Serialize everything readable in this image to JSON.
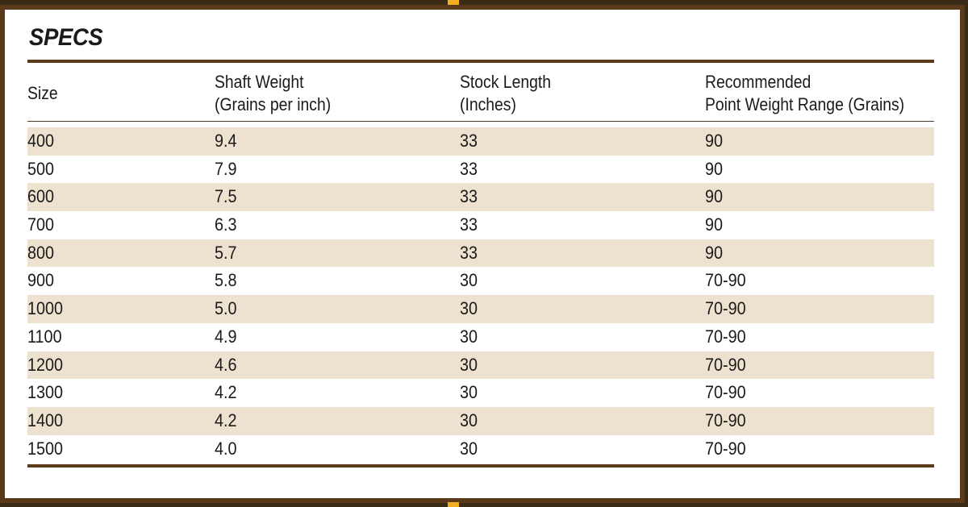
{
  "title": "SPECS",
  "headers": {
    "size": "Size",
    "shaft_weight_1": "Shaft Weight",
    "shaft_weight_2": "(Grains per inch)",
    "stock_length_1": "Stock Length",
    "stock_length_2": "(Inches)",
    "point_weight_1": "Recommended",
    "point_weight_2": "Point Weight Range (Grains)"
  },
  "rows": [
    {
      "size": "400",
      "shaft_weight": "9.4",
      "stock_length": "33",
      "point_weight": "90"
    },
    {
      "size": "500",
      "shaft_weight": "7.9",
      "stock_length": "33",
      "point_weight": "90"
    },
    {
      "size": "600",
      "shaft_weight": "7.5",
      "stock_length": "33",
      "point_weight": "90"
    },
    {
      "size": "700",
      "shaft_weight": "6.3",
      "stock_length": "33",
      "point_weight": "90"
    },
    {
      "size": "800",
      "shaft_weight": "5.7",
      "stock_length": "33",
      "point_weight": "90"
    },
    {
      "size": "900",
      "shaft_weight": "5.8",
      "stock_length": "30",
      "point_weight": "70-90"
    },
    {
      "size": "1000",
      "shaft_weight": "5.0",
      "stock_length": "30",
      "point_weight": "70-90"
    },
    {
      "size": "1100",
      "shaft_weight": "4.9",
      "stock_length": "30",
      "point_weight": "70-90"
    },
    {
      "size": "1200",
      "shaft_weight": "4.6",
      "stock_length": "30",
      "point_weight": "70-90"
    },
    {
      "size": "1300",
      "shaft_weight": "4.2",
      "stock_length": "30",
      "point_weight": "70-90"
    },
    {
      "size": "1400",
      "shaft_weight": "4.2",
      "stock_length": "30",
      "point_weight": "70-90"
    },
    {
      "size": "1500",
      "shaft_weight": "4.0",
      "stock_length": "30",
      "point_weight": "70-90"
    }
  ],
  "colors": {
    "frame": "#5a3a1a",
    "row_shade": "#ede1cf",
    "accent": "#f0b020"
  }
}
